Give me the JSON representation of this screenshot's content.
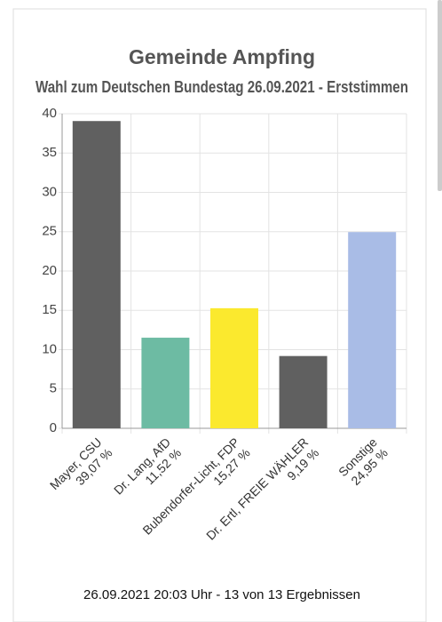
{
  "chart_data": {
    "type": "bar",
    "title": "Gemeinde Ampfing",
    "subtitle": "Wahl zum Deutschen Bundestag 26.09.2021  - Erststimmen",
    "categories": [
      "Mayer, CSU",
      "Dr. Lang, AfD",
      "Bubendorfer-Licht, FDP",
      "Dr. Ertl, FREIE WÄHLER",
      "Sonstige"
    ],
    "values": [
      39.07,
      11.52,
      15.27,
      9.19,
      24.95
    ],
    "value_labels": [
      "39,07 %",
      "11,52 %",
      "15,27 %",
      "9,19 %",
      "24,95 %"
    ],
    "colors": [
      "#606060",
      "#6dbba3",
      "#fbe92e",
      "#606060",
      "#a9bce6"
    ],
    "ylim": [
      0,
      40
    ],
    "yticks": [
      0,
      5,
      10,
      15,
      20,
      25,
      30,
      35,
      40
    ],
    "grid": true,
    "footer": "26.09.2021 20:03 Uhr - 13 von 13 Ergebnissen"
  }
}
